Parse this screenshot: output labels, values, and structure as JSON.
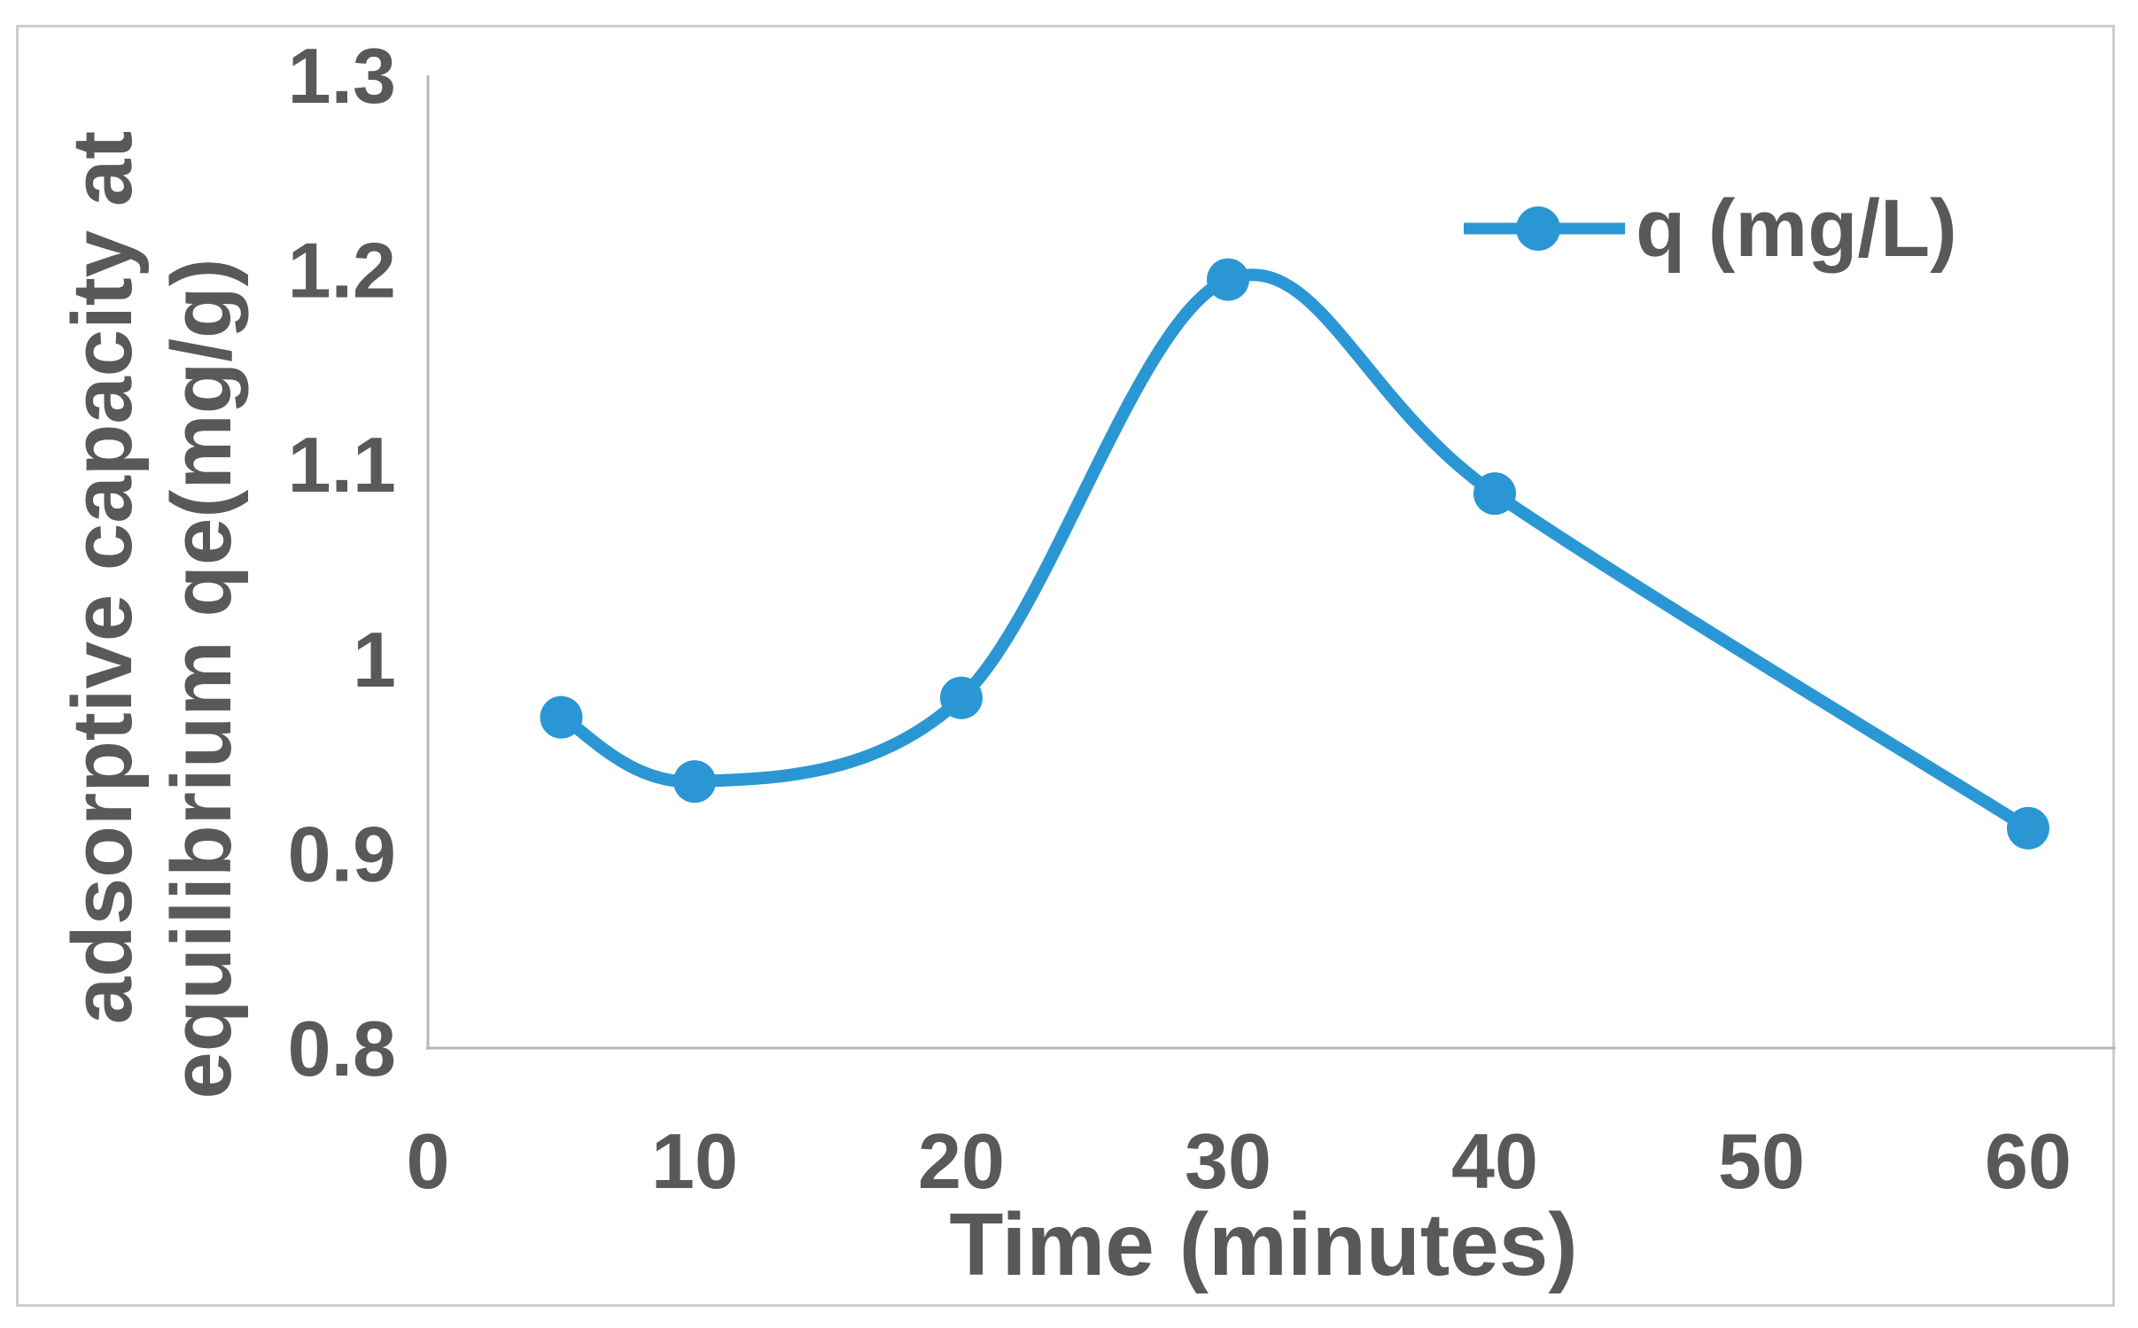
{
  "chart_data": {
    "type": "line",
    "smooth": true,
    "marker": "circle",
    "grid": false,
    "legend_position": "top-right",
    "xlabel": "Time (minutes)",
    "ylabel": "adsorptive capacity at equilibrium qe(mg/g)",
    "ylabel_lines": [
      "adsorptive capacity at",
      "equilibrium qe(mg/g)"
    ],
    "xlim": [
      0,
      60
    ],
    "ylim": [
      0.8,
      1.3
    ],
    "xticks": [
      0,
      10,
      20,
      30,
      40,
      50,
      60
    ],
    "xtick_labels": [
      "0",
      "10",
      "20",
      "30",
      "40",
      "50",
      "60"
    ],
    "yticks": [
      0.8,
      0.9,
      1.0,
      1.1,
      1.2,
      1.3
    ],
    "ytick_labels": [
      "0.8",
      "0.9",
      "1",
      "1.1",
      "1.2",
      "1.3"
    ],
    "series": [
      {
        "name": "q (mg/L)",
        "x": [
          5,
          10,
          20,
          30,
          40,
          60
        ],
        "values": [
          0.97,
          0.937,
          0.98,
          1.195,
          1.085,
          0.913
        ]
      }
    ]
  },
  "legend": {
    "label": "q (mg/L)"
  },
  "colors": {
    "series": "#2a97d4",
    "text": "#595959",
    "axis": "#b7b7b7",
    "frame_border": "#cdcdcd",
    "background": "#ffffff"
  }
}
